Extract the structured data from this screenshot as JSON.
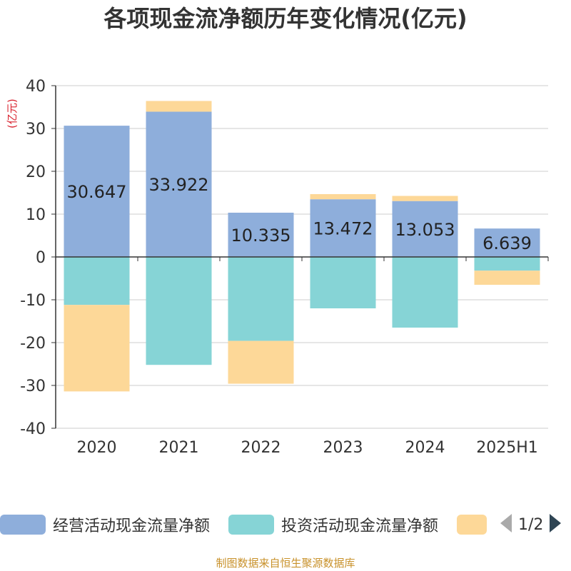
{
  "chart_data": {
    "type": "bar",
    "stacked": true,
    "title": "各项现金流净额历年变化情况(亿元)",
    "ylabel": "(亿元)",
    "categories": [
      "2020",
      "2021",
      "2022",
      "2023",
      "2024",
      "2025H1"
    ],
    "ylim": [
      -40,
      40
    ],
    "yticks": [
      40,
      30,
      20,
      10,
      0,
      -10,
      -20,
      -30,
      -40
    ],
    "grid": true,
    "series": [
      {
        "name": "经营活动现金流量净额",
        "color": "#8eaedb",
        "values": [
          30.647,
          33.922,
          10.335,
          13.472,
          13.053,
          6.639
        ],
        "labels": [
          "30.647",
          "33.922",
          "10.335",
          "13.472",
          "13.053",
          "6.639"
        ]
      },
      {
        "name": "投资活动现金流量净额",
        "color": "#86d4d6",
        "values": [
          -11.2,
          -25.2,
          -19.6,
          -12.0,
          -16.5,
          -3.2
        ]
      },
      {
        "name": "",
        "color": "#fdd898",
        "values": [
          -20.2,
          2.5,
          -10.0,
          1.2,
          1.2,
          -3.3
        ]
      }
    ]
  },
  "legend": {
    "pager": "1/2",
    "items": [
      {
        "label": "经营活动现金流量净额",
        "color": "#8eaedb"
      },
      {
        "label": "投资活动现金流量净额",
        "color": "#86d4d6"
      },
      {
        "label": "",
        "color": "#fdd898"
      }
    ]
  },
  "footer": "制图数据来自恒生聚源数据库"
}
